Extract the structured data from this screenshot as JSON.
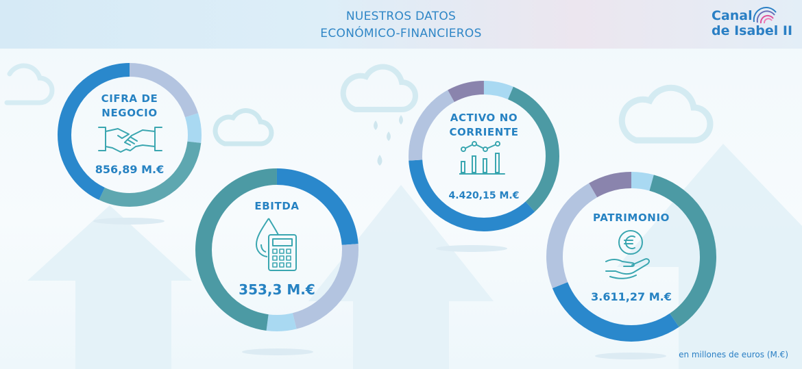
{
  "header": {
    "title_line1": "NUESTROS DATOS",
    "title_line2": "ECONÓMICO-FINANCIEROS"
  },
  "logo": {
    "line1": "Canal",
    "line2": "de Isabel II"
  },
  "metrics": [
    {
      "label_line1": "CIFRA DE",
      "label_line2": "NEGOCIO",
      "value": "856,89 M.€",
      "icon": "handshake-icon"
    },
    {
      "label_line1": "EBITDA",
      "value": "353,3 M.€",
      "icon": "water-drop-calculator-icon"
    },
    {
      "label_line1": "ACTIVO NO",
      "label_line2": "CORRIENTE",
      "value": "4.420,15 M.€",
      "icon": "bar-chart-trend-icon"
    },
    {
      "label_line1": "PATRIMONIO",
      "value": "3.611,27 M.€",
      "icon": "euro-coin-hand-icon"
    }
  ],
  "footnote": "en millones de euros (M.€)",
  "colors": {
    "accent": "#2682c2",
    "ring_blue": "#2a88cc",
    "ring_teal": "#3f8f99",
    "ring_lavender": "#b3c4e0",
    "ring_purple": "#8a84ad",
    "ring_light": "#a9d9f2",
    "icon_teal": "#3aa6b0"
  }
}
